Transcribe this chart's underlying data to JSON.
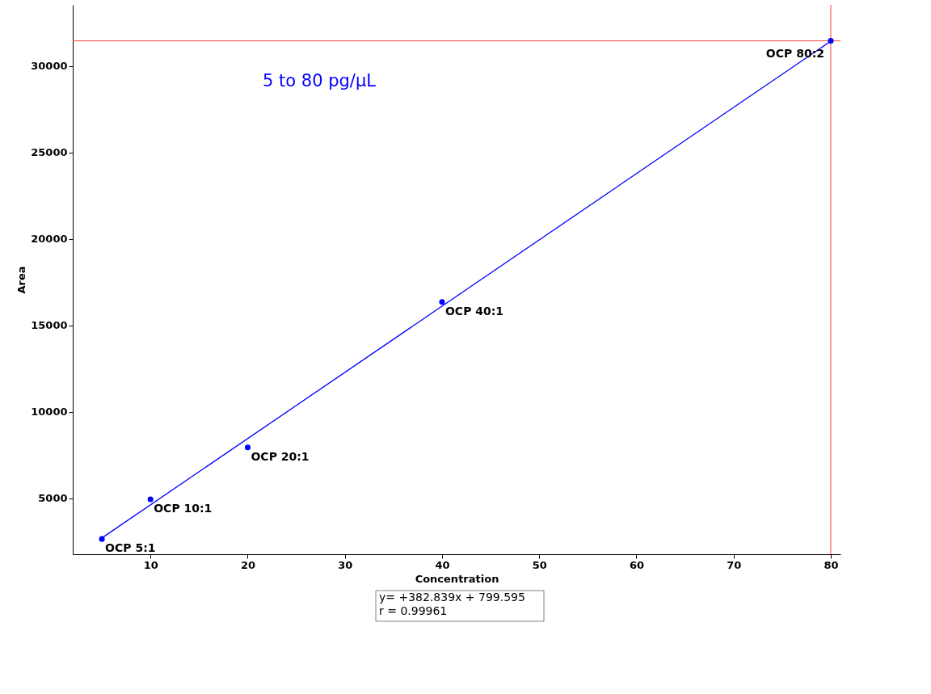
{
  "chart_data": {
    "type": "scatter",
    "xlabel": "Concentration",
    "ylabel": "Area",
    "xlim": [
      2,
      81
    ],
    "xticks": [
      10,
      20,
      30,
      40,
      50,
      60,
      70,
      80
    ],
    "ylim": [
      1770,
      33530
    ],
    "yticks": [
      5000,
      10000,
      15000,
      20000,
      25000,
      30000
    ],
    "grid": false,
    "series": [
      {
        "color": "#0000ff",
        "marker": "circle",
        "x": [
          5,
          10,
          20,
          40,
          80
        ],
        "values": [
          2650,
          4950,
          7950,
          16350,
          31450
        ]
      },
      {
        "type": "line",
        "color": "#0000ff",
        "marker": "none",
        "line_style": "solid",
        "x": [
          5,
          80
        ],
        "values": [
          2710,
          31430
        ]
      }
    ],
    "ref_lines": [
      {
        "axis": "x",
        "value": 80,
        "color": "#ff4040"
      },
      {
        "axis": "y",
        "value": 31450,
        "color": "#ff4040"
      }
    ],
    "annotations": [
      "5 to 80 pg/μL",
      "y= +382.839x + 799.595",
      "r = 0.99961",
      {
        "text": "OCP 5:1",
        "x": 5,
        "y": 2650
      },
      {
        "text": "OCP 10:1",
        "x": 10,
        "y": 4950
      },
      {
        "text": "OCP 20:1",
        "x": 20,
        "y": 7950
      },
      {
        "text": "OCP 40:1",
        "x": 40,
        "y": 16350
      },
      {
        "text": "OCP 80:2",
        "x": 80,
        "y": 31450
      }
    ]
  }
}
